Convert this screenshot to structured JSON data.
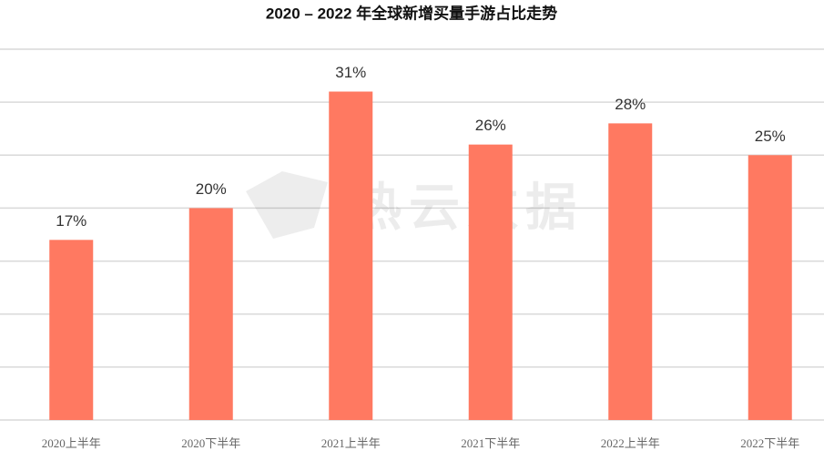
{
  "chart_data": {
    "type": "bar",
    "title": "2020 – 2022 年全球新增买量手游占比走势",
    "categories": [
      "2020上半年",
      "2020下半年",
      "2021上半年",
      "2021下半年",
      "2022上半年",
      "2022下半年"
    ],
    "values": [
      17,
      20,
      31,
      26,
      28,
      25
    ],
    "value_labels": [
      "17%",
      "20%",
      "31%",
      "26%",
      "28%",
      "25%"
    ],
    "color": "#ff7961",
    "ylim": [
      0,
      35
    ],
    "yticks": [
      0,
      5,
      10,
      15,
      20,
      25,
      30,
      35
    ],
    "grid": true,
    "watermark": "热云数据"
  }
}
